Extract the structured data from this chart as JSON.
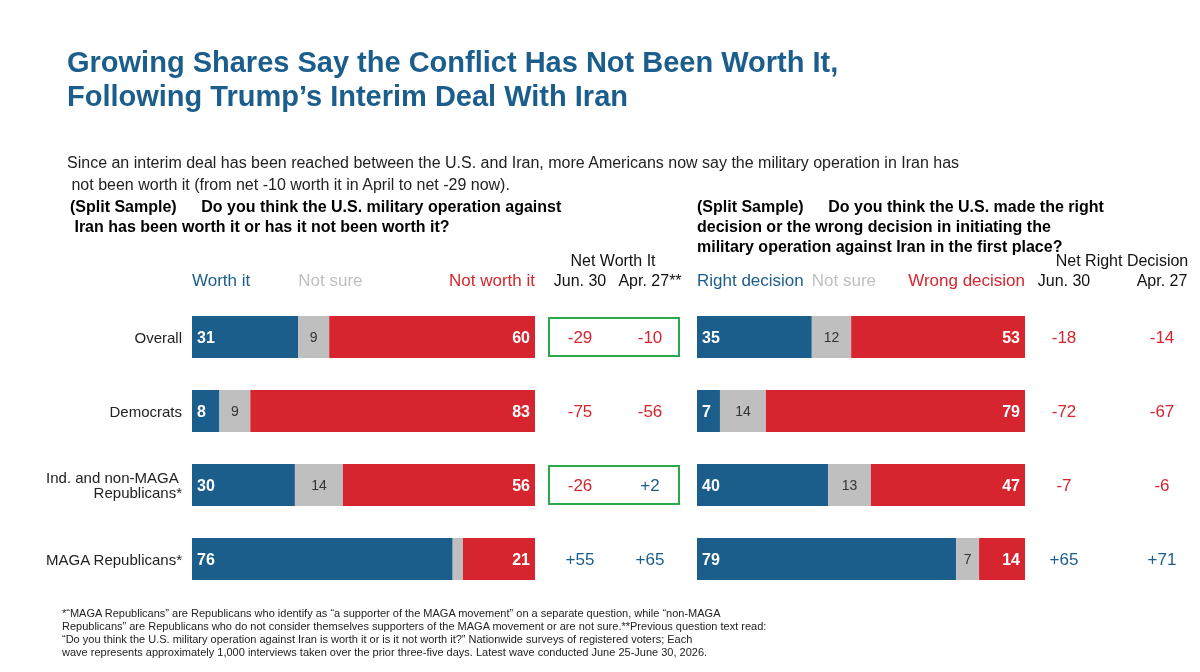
{
  "chart_data": [
    {
      "type": "bar",
      "orientation": "horizontal",
      "stacked": true,
      "title": "Growing Shares Say the Conflict Has Not Been Worth It, Following Trump’s Interim Deal With Iran",
      "subtitle": "Since an interim deal has been reached between the U.S. and Iran, more Americans now say the military operation in Iran has not been worth it (from net -10 worth it in April to net -29 now).",
      "categories": [
        "Overall",
        "Democrats",
        "Ind. and non-MAGA Republicans*",
        "MAGA Republicans*"
      ],
      "xlim": [
        0,
        100
      ],
      "tick_labels": "y",
      "series": [
        {
          "name": "Worth it",
          "color": "#1b5e8c",
          "values": [
            31,
            8,
            30,
            76
          ],
          "value_labels": [
            "31",
            "8",
            "30",
            "76"
          ]
        },
        {
          "name": "Not sure",
          "color": "#bfbfbf",
          "values": [
            9,
            9,
            14,
            3
          ],
          "value_labels": [
            "9",
            "9",
            "14",
            null
          ]
        },
        {
          "name": "Not worth it",
          "color": "#d6252e",
          "values": [
            60,
            83,
            56,
            21
          ],
          "value_labels": [
            "60",
            "83",
            "56",
            "21"
          ]
        }
      ],
      "annotations": [
        "(Split Sample)",
        "Do you think the U.S. military operation against Iran has been worth it or has it not been worth it?",
        "Net Worth It",
        "Jun. 30",
        "Apr. 27**",
        "-29",
        "-10",
        "-75",
        "-56",
        "-26",
        "+2",
        "+55",
        "+65",
        "*“MAGA Republicans” are Republicans who identify as “a supporter of the MAGA movement” on a separate question, while “non-MAGA Republicans” are Republicans who do not consider themselves supporters of the MAGA movement or are not sure.**Previous question text read: “Do you think the U.S. military operation against Iran is worth it or is it not worth it?” Nationwide surveys of registered voters; Each wave represents approximately 1,000 interviews taken over the prior three-five days. Latest wave conducted June 25-June 30, 2026."
      ]
    },
    {
      "type": "bar",
      "orientation": "horizontal",
      "stacked": true,
      "categories": [
        null,
        null,
        null,
        null
      ],
      "xlim": [
        0,
        100
      ],
      "tick_labels": false,
      "series": [
        {
          "name": "Right decision",
          "color": "#1b5e8c",
          "values": [
            35,
            7,
            40,
            79
          ],
          "value_labels": [
            "35",
            "7",
            "40",
            "79"
          ]
        },
        {
          "name": "Not sure",
          "color": "#bfbfbf",
          "values": [
            12,
            14,
            13,
            7
          ],
          "value_labels": [
            "12",
            "14",
            "13",
            "7"
          ]
        },
        {
          "name": "Wrong decision",
          "color": "#d6252e",
          "values": [
            53,
            79,
            47,
            14
          ],
          "value_labels": [
            "53",
            "79",
            "47",
            "14"
          ]
        }
      ],
      "annotations": [
        "(Split Sample)",
        "Do you think the U.S. made the right decision or the wrong decision in initiating the military operation against Iran in the first place?",
        "Net Right Decision",
        "Jun. 30",
        "Apr. 27",
        "-18",
        "-14",
        "-72",
        "-67",
        "-7",
        "-6",
        "+65",
        "+71"
      ]
    }
  ]
}
